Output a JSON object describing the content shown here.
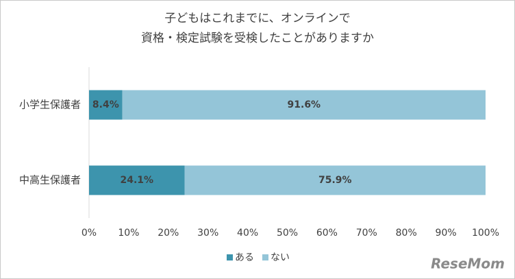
{
  "chart_data": {
    "type": "stacked-bar-horizontal",
    "title": [
      "子どもはこれまでに、オンラインで",
      "資格・検定試験を受検したことがありますか"
    ],
    "categories": [
      "小学生保護者",
      "中高生保護者"
    ],
    "series": [
      {
        "name": "ある",
        "color": "#3d94ad",
        "values": [
          8.4,
          24.1
        ],
        "value_labels": [
          "8.4%",
          "24.1%"
        ]
      },
      {
        "name": "ない",
        "color": "#94c5d8",
        "values": [
          91.6,
          75.9
        ],
        "value_labels": [
          "91.6%",
          "75.9%"
        ]
      }
    ],
    "xlim": [
      0,
      100
    ],
    "xticks": [
      {
        "value": 0,
        "label": "0%"
      },
      {
        "value": 10,
        "label": "10%"
      },
      {
        "value": 20,
        "label": "20%"
      },
      {
        "value": 30,
        "label": "30%"
      },
      {
        "value": 40,
        "label": "40%"
      },
      {
        "value": 50,
        "label": "50%"
      },
      {
        "value": 60,
        "label": "60%"
      },
      {
        "value": 70,
        "label": "70%"
      },
      {
        "value": 80,
        "label": "80%"
      },
      {
        "value": 90,
        "label": "90%"
      },
      {
        "value": 100,
        "label": "100%"
      }
    ],
    "grid": false,
    "legend": "bottom",
    "watermark": "ReseMom"
  }
}
